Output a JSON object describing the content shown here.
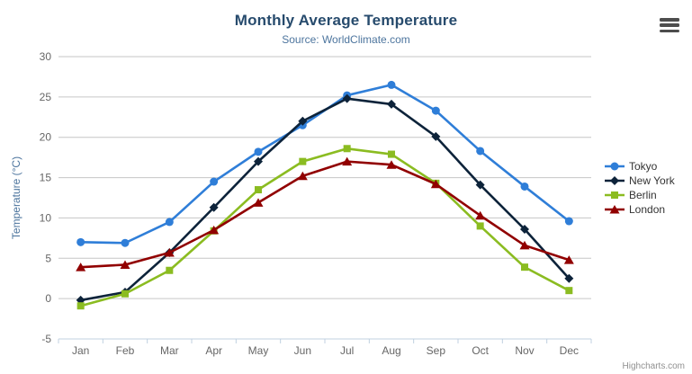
{
  "chart": {
    "title": "Monthly Average Temperature",
    "subtitle": "Source: WorldClimate.com",
    "credits": "Highcharts.com",
    "menu_icon": "hamburger-menu-icon"
  },
  "chart_data": {
    "type": "line",
    "title": "Monthly Average Temperature",
    "subtitle": "Source: WorldClimate.com",
    "categories": [
      "Jan",
      "Feb",
      "Mar",
      "Apr",
      "May",
      "Jun",
      "Jul",
      "Aug",
      "Sep",
      "Oct",
      "Nov",
      "Dec"
    ],
    "xlabel": "",
    "ylabel": "Temperature (°C)",
    "ylim": [
      -5,
      30
    ],
    "y_tick_interval": 5,
    "grid": true,
    "legend_position": "right",
    "series": [
      {
        "name": "Tokyo",
        "color": "#2f7ed8",
        "marker": "circle",
        "values": [
          7.0,
          6.9,
          9.5,
          14.5,
          18.2,
          21.5,
          25.2,
          26.5,
          23.3,
          18.3,
          13.9,
          9.6
        ]
      },
      {
        "name": "New York",
        "color": "#0d233a",
        "marker": "diamond",
        "values": [
          -0.2,
          0.8,
          5.7,
          11.3,
          17.0,
          22.0,
          24.8,
          24.1,
          20.1,
          14.1,
          8.6,
          2.5
        ]
      },
      {
        "name": "Berlin",
        "color": "#8bbc21",
        "marker": "square",
        "values": [
          -0.9,
          0.6,
          3.5,
          8.4,
          13.5,
          17.0,
          18.6,
          17.9,
          14.3,
          9.0,
          3.9,
          1.0
        ]
      },
      {
        "name": "London",
        "color": "#910000",
        "marker": "triangle",
        "values": [
          3.9,
          4.2,
          5.7,
          8.5,
          11.9,
          15.2,
          17.0,
          16.6,
          14.2,
          10.3,
          6.6,
          4.8
        ]
      }
    ]
  },
  "colors": {
    "title": "#274b6d",
    "subtitle": "#4d759e",
    "axis_label": "#666666",
    "axis_title": "#4d759e",
    "grid_line": "#c6c6c6",
    "axis_line": "#c0d0e0",
    "legend_text": "#333333",
    "credits": "#909090"
  }
}
